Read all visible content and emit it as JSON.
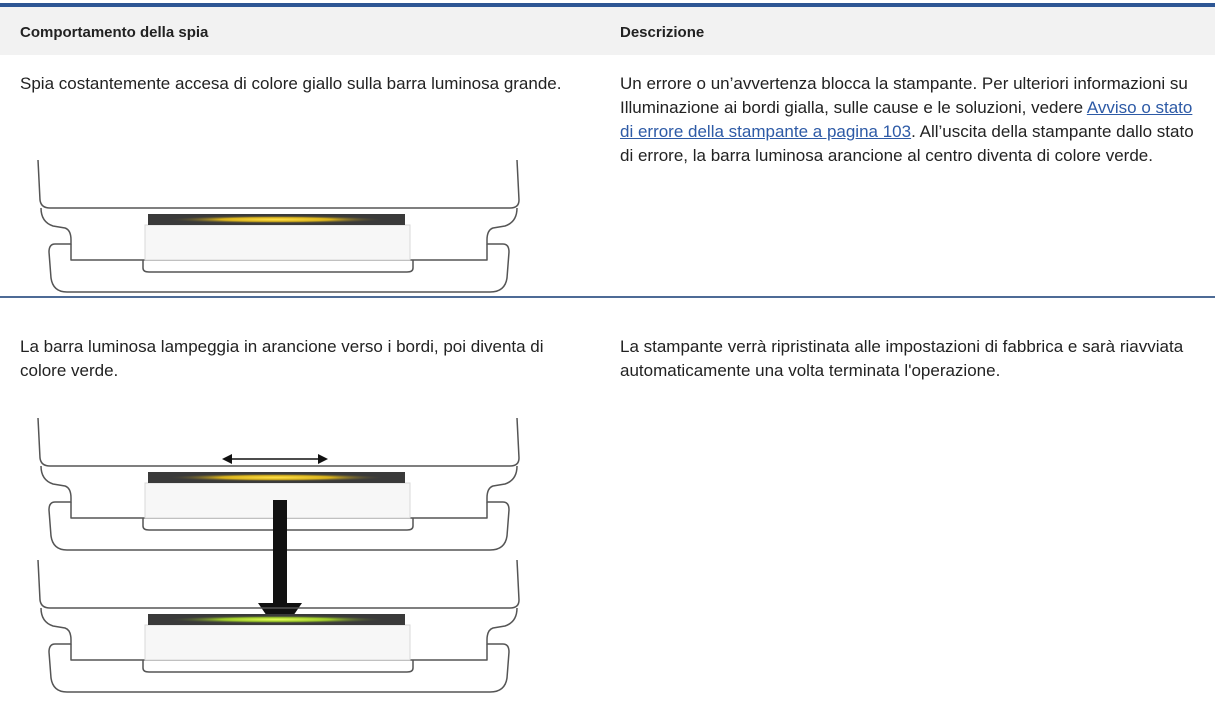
{
  "table": {
    "headers": [
      "Comportamento della spia",
      "Descrizione"
    ],
    "rows": [
      {
        "behavior": "Spia costantemente accesa di colore giallo sulla barra luminosa grande.",
        "description": {
          "before": "Un errore o un’avvertenza blocca la stampante. Per ulteriori informazioni su Illuminazione ai bordi gialla, sulle cause e le soluzioni, vedere ",
          "link": "Avviso o stato di errore della stampante a pagina 103",
          "after": ". All’uscita della stampante dallo stato di errore, la barra luminosa arancione al centro diventa di colore verde."
        }
      },
      {
        "behavior": "La barra luminosa lampeggia in arancione verso i bordi, poi diventa di colore verde.",
        "description": {
          "before": "La stampante verrà ripristinata alle impostazioni di fabbrica e sarà riavviata automaticamente una volta terminata l'operazione."
        }
      }
    ]
  }
}
